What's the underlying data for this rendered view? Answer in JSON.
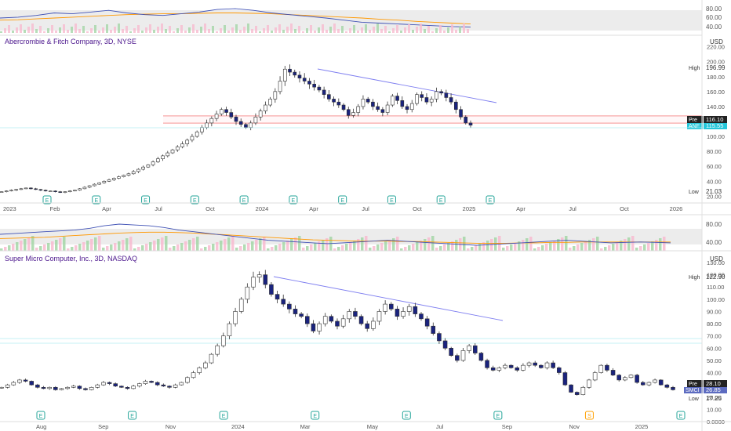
{
  "colors": {
    "up": "#ffffff",
    "down": "#1a237e",
    "outline": "#333333",
    "rsi_line": "#3f51b5",
    "rsi_ma": "#ff9800",
    "trendline": "#7e7ef0",
    "support": "#ef5350",
    "volume_up": "#a5d6a7",
    "volume_down": "#f8bbd0",
    "last_price_tag": "#26c6da"
  },
  "chart_data": [
    {
      "type": "line",
      "name": "RSI panel (Abercrombie & Fitch)",
      "y_ticks": [
        "80.00",
        "60.00",
        "40.00"
      ],
      "ylim": [
        25,
        95
      ],
      "band": [
        40,
        70
      ],
      "series": [
        {
          "values": [
            60,
            62,
            66,
            72,
            70,
            74,
            78,
            72,
            68,
            66,
            70,
            74,
            80,
            82,
            78,
            72,
            68,
            64,
            60,
            55,
            50,
            48,
            46,
            44,
            42,
            40,
            39
          ]
        },
        {
          "values": [
            55,
            56,
            58,
            60,
            62,
            64,
            66,
            68,
            69,
            70,
            70,
            71,
            72,
            72,
            71,
            70,
            68,
            66,
            64,
            62,
            60,
            57,
            55,
            52,
            50,
            48,
            46
          ]
        }
      ]
    },
    {
      "type": "candlestick",
      "title": "Abercrombie & Fitch Company, 3D, NYSE",
      "currency": "USD",
      "y_ticks": [
        "220.00",
        "200.00",
        "180.00",
        "160.00",
        "140.00",
        "120.00",
        "100.00",
        "80.00",
        "60.00",
        "40.00",
        "20.00"
      ],
      "ylim": [
        12,
        228
      ],
      "x_ticks": [
        "2023",
        "Feb",
        "Apr",
        "Jul",
        "Oct",
        "2024",
        "Apr",
        "Jul",
        "Oct",
        "2025",
        "Apr",
        "Jul",
        "Oct",
        "2026"
      ],
      "high": {
        "label": "High",
        "value": "196.99"
      },
      "low": {
        "label": "Low",
        "value": "21.03"
      },
      "pre": {
        "label": "Pre",
        "value": "116.10"
      },
      "last": {
        "label": "ANF",
        "value": "115.55"
      },
      "support_levels": [
        129,
        116
      ],
      "trendline": [
        [
          196,
          158
        ]
      ],
      "closes": [
        26,
        27,
        28,
        29,
        30,
        31,
        30,
        29,
        28,
        27,
        27,
        26,
        25,
        26,
        27,
        28,
        30,
        32,
        34,
        36,
        38,
        40,
        42,
        44,
        46,
        48,
        50,
        53,
        56,
        59,
        62,
        66,
        70,
        74,
        78,
        82,
        86,
        90,
        95,
        100,
        106,
        112,
        118,
        124,
        130,
        136,
        132,
        126,
        120,
        116,
        112,
        118,
        126,
        134,
        142,
        150,
        160,
        174,
        190,
        186,
        182,
        178,
        174,
        170,
        166,
        162,
        156,
        150,
        146,
        142,
        136,
        128,
        132,
        140,
        150,
        146,
        140,
        136,
        132,
        142,
        154,
        148,
        140,
        136,
        144,
        156,
        152,
        146,
        150,
        160,
        158,
        152,
        146,
        136,
        126,
        118,
        115
      ],
      "event_markers": [
        "E",
        "E",
        "E",
        "E",
        "E",
        "E",
        "E",
        "E",
        "E",
        "E"
      ]
    },
    {
      "type": "line",
      "name": "RSI panel (Super Micro Computer)",
      "y_ticks": [
        "80.00",
        "40.00"
      ],
      "ylim": [
        25,
        95
      ],
      "band": [
        40,
        70
      ],
      "series": [
        {
          "values": [
            60,
            62,
            64,
            66,
            68,
            70,
            74,
            80,
            84,
            82,
            80,
            76,
            70,
            66,
            62,
            58,
            54,
            50,
            46,
            44,
            42,
            40,
            38,
            40,
            42,
            44,
            46,
            44,
            42,
            40,
            38,
            36,
            34,
            36,
            38,
            40,
            42,
            44,
            46,
            44,
            42,
            40,
            41,
            42,
            41,
            40
          ]
        },
        {
          "values": [
            50,
            51,
            52,
            53,
            55,
            57,
            59,
            61,
            63,
            64,
            65,
            65,
            64,
            63,
            61,
            59,
            57,
            55,
            53,
            51,
            49,
            47,
            46,
            45,
            44,
            44,
            44,
            43,
            43,
            42,
            41,
            40,
            39,
            39,
            39,
            40,
            40,
            41,
            41,
            42,
            42,
            42,
            42,
            42,
            42,
            42
          ]
        }
      ]
    },
    {
      "type": "candlestick",
      "title": "Super Micro Computer, Inc., 3D, NASDAQ",
      "currency": "USD",
      "y_ticks": [
        "130.00",
        "120.00",
        "110.00",
        "100.00",
        "90.00",
        "80.00",
        "70.00",
        "60.00",
        "50.00",
        "40.00",
        "30.00",
        "20.00",
        "10.00",
        "0.0000"
      ],
      "ylim": [
        0,
        130
      ],
      "x_ticks": [
        "Aug",
        "Sep",
        "Nov",
        "2024",
        "Mar",
        "May",
        "Jul",
        "Sep",
        "Nov",
        "2025"
      ],
      "high": {
        "label": "High",
        "value": "122.90"
      },
      "low": {
        "label": "Low",
        "value": "17.25"
      },
      "pre": {
        "label": "Pre",
        "value": "28.10"
      },
      "last": {
        "label": "SMCI",
        "value": "26.85"
      },
      "support_levels": [
        70,
        67
      ],
      "trendline": [
        [
          120,
          84
        ]
      ],
      "closes": [
        28,
        30,
        32,
        34,
        33,
        30,
        28,
        27,
        28,
        26,
        27,
        28,
        29,
        27,
        26,
        28,
        30,
        32,
        31,
        29,
        28,
        27,
        29,
        31,
        33,
        32,
        30,
        29,
        28,
        30,
        32,
        36,
        40,
        44,
        48,
        55,
        62,
        70,
        80,
        90,
        100,
        110,
        118,
        120,
        112,
        104,
        100,
        96,
        92,
        88,
        86,
        80,
        74,
        80,
        86,
        82,
        78,
        84,
        90,
        86,
        80,
        76,
        82,
        90,
        96,
        92,
        86,
        90,
        94,
        88,
        84,
        78,
        72,
        66,
        60,
        54,
        50,
        58,
        62,
        56,
        50,
        44,
        42,
        44,
        46,
        44,
        42,
        46,
        48,
        46,
        44,
        48,
        44,
        40,
        30,
        24,
        22,
        28,
        34,
        40,
        46,
        42,
        38,
        34,
        36,
        38,
        32,
        30,
        32,
        34,
        30,
        28,
        26
      ],
      "event_markers": [
        "E",
        "E",
        "E",
        "E",
        "E",
        "E",
        "S",
        "E"
      ]
    }
  ]
}
